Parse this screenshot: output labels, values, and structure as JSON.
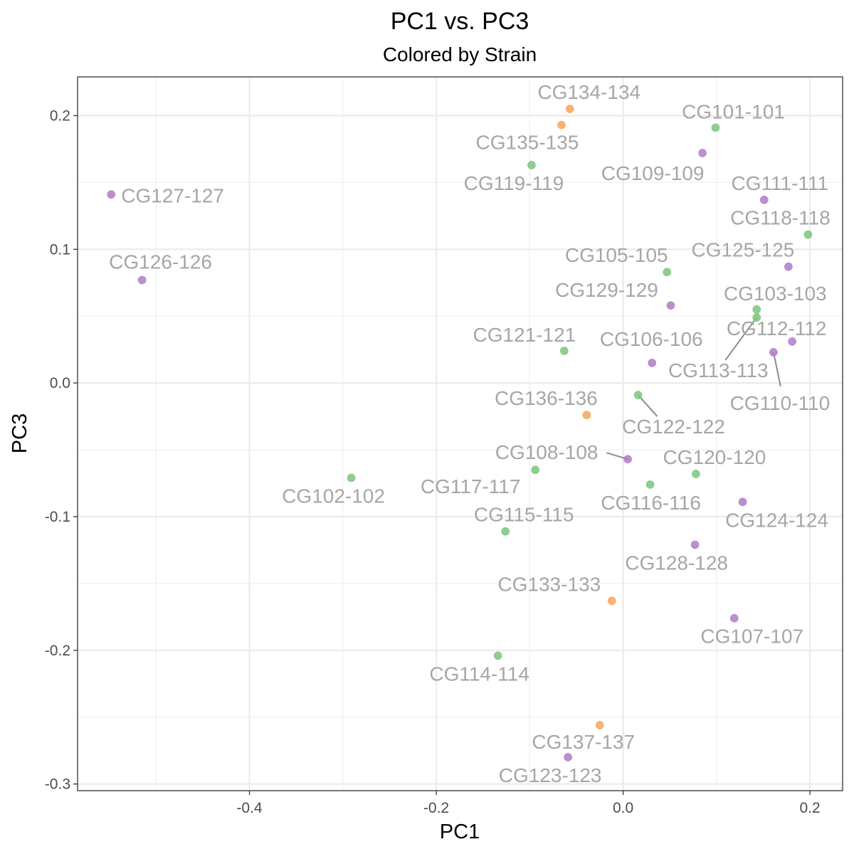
{
  "chart_data": {
    "type": "scatter",
    "title": "PC1 vs. PC3",
    "subtitle": "Colored by Strain",
    "xlabel": "PC1",
    "ylabel": "PC3",
    "xlim": [
      -0.584,
      0.235
    ],
    "ylim": [
      -0.305,
      0.229
    ],
    "x_ticks": [
      -0.4,
      -0.2,
      0.0,
      0.2
    ],
    "x_tick_labels": [
      "-0.4",
      "-0.2",
      "0.0",
      "0.2"
    ],
    "y_ticks": [
      -0.3,
      -0.2,
      -0.1,
      0.0,
      0.1,
      0.2
    ],
    "y_tick_labels": [
      "-0.3",
      "-0.2",
      "-0.1",
      "0.0",
      "0.1",
      "0.2"
    ],
    "grid": true,
    "legend": "none",
    "colors": {
      "purple": "#b07cc6",
      "green": "#7bc67b",
      "orange": "#f9a55c"
    },
    "points": [
      {
        "label": "CG134-134",
        "x": -0.057,
        "y": 0.205,
        "color": "orange"
      },
      {
        "label": "CG135-135",
        "x": -0.066,
        "y": 0.193,
        "color": "orange"
      },
      {
        "label": "CG101-101",
        "x": 0.099,
        "y": 0.191,
        "color": "green"
      },
      {
        "label": "CG109-109",
        "x": 0.085,
        "y": 0.172,
        "color": "purple"
      },
      {
        "label": "CG119-119",
        "x": -0.098,
        "y": 0.163,
        "color": "green"
      },
      {
        "label": "CG127-127",
        "x": -0.548,
        "y": 0.141,
        "color": "purple"
      },
      {
        "label": "CG111-111",
        "x": 0.151,
        "y": 0.137,
        "color": "purple"
      },
      {
        "label": "CG118-118",
        "x": 0.198,
        "y": 0.111,
        "color": "green"
      },
      {
        "label": "CG125-125",
        "x": 0.177,
        "y": 0.087,
        "color": "purple"
      },
      {
        "label": "CG105-105",
        "x": 0.047,
        "y": 0.083,
        "color": "green"
      },
      {
        "label": "CG126-126",
        "x": -0.515,
        "y": 0.077,
        "color": "purple"
      },
      {
        "label": "CG129-129",
        "x": 0.051,
        "y": 0.058,
        "color": "purple"
      },
      {
        "label": "CG103-103",
        "x": 0.143,
        "y": 0.055,
        "color": "green"
      },
      {
        "label": "CG113-113",
        "x": 0.143,
        "y": 0.049,
        "color": "green"
      },
      {
        "label": "CG112-112",
        "x": 0.181,
        "y": 0.031,
        "color": "purple"
      },
      {
        "label": "CG121-121",
        "x": -0.063,
        "y": 0.024,
        "color": "green"
      },
      {
        "label": "CG110-110",
        "x": 0.161,
        "y": 0.023,
        "color": "purple"
      },
      {
        "label": "CG106-106",
        "x": 0.031,
        "y": 0.015,
        "color": "purple"
      },
      {
        "label": "CG122-122",
        "x": 0.016,
        "y": -0.009,
        "color": "green"
      },
      {
        "label": "CG136-136",
        "x": -0.039,
        "y": -0.024,
        "color": "orange"
      },
      {
        "label": "CG108-108",
        "x": 0.005,
        "y": -0.057,
        "color": "purple"
      },
      {
        "label": "CG117-117",
        "x": -0.094,
        "y": -0.065,
        "color": "green"
      },
      {
        "label": "CG120-120",
        "x": 0.078,
        "y": -0.068,
        "color": "green"
      },
      {
        "label": "CG102-102",
        "x": -0.291,
        "y": -0.071,
        "color": "green"
      },
      {
        "label": "CG116-116",
        "x": 0.029,
        "y": -0.076,
        "color": "green"
      },
      {
        "label": "CG124-124",
        "x": 0.128,
        "y": -0.089,
        "color": "purple"
      },
      {
        "label": "CG115-115",
        "x": -0.126,
        "y": -0.111,
        "color": "green"
      },
      {
        "label": "CG128-128",
        "x": 0.077,
        "y": -0.121,
        "color": "purple"
      },
      {
        "label": "CG133-133",
        "x": -0.012,
        "y": -0.163,
        "color": "orange"
      },
      {
        "label": "CG107-107",
        "x": 0.119,
        "y": -0.176,
        "color": "purple"
      },
      {
        "label": "CG114-114",
        "x": -0.134,
        "y": -0.204,
        "color": "green"
      },
      {
        "label": "CG137-137",
        "x": -0.025,
        "y": -0.256,
        "color": "orange"
      },
      {
        "label": "CG123-123",
        "x": -0.059,
        "y": -0.28,
        "color": "purple"
      }
    ]
  }
}
